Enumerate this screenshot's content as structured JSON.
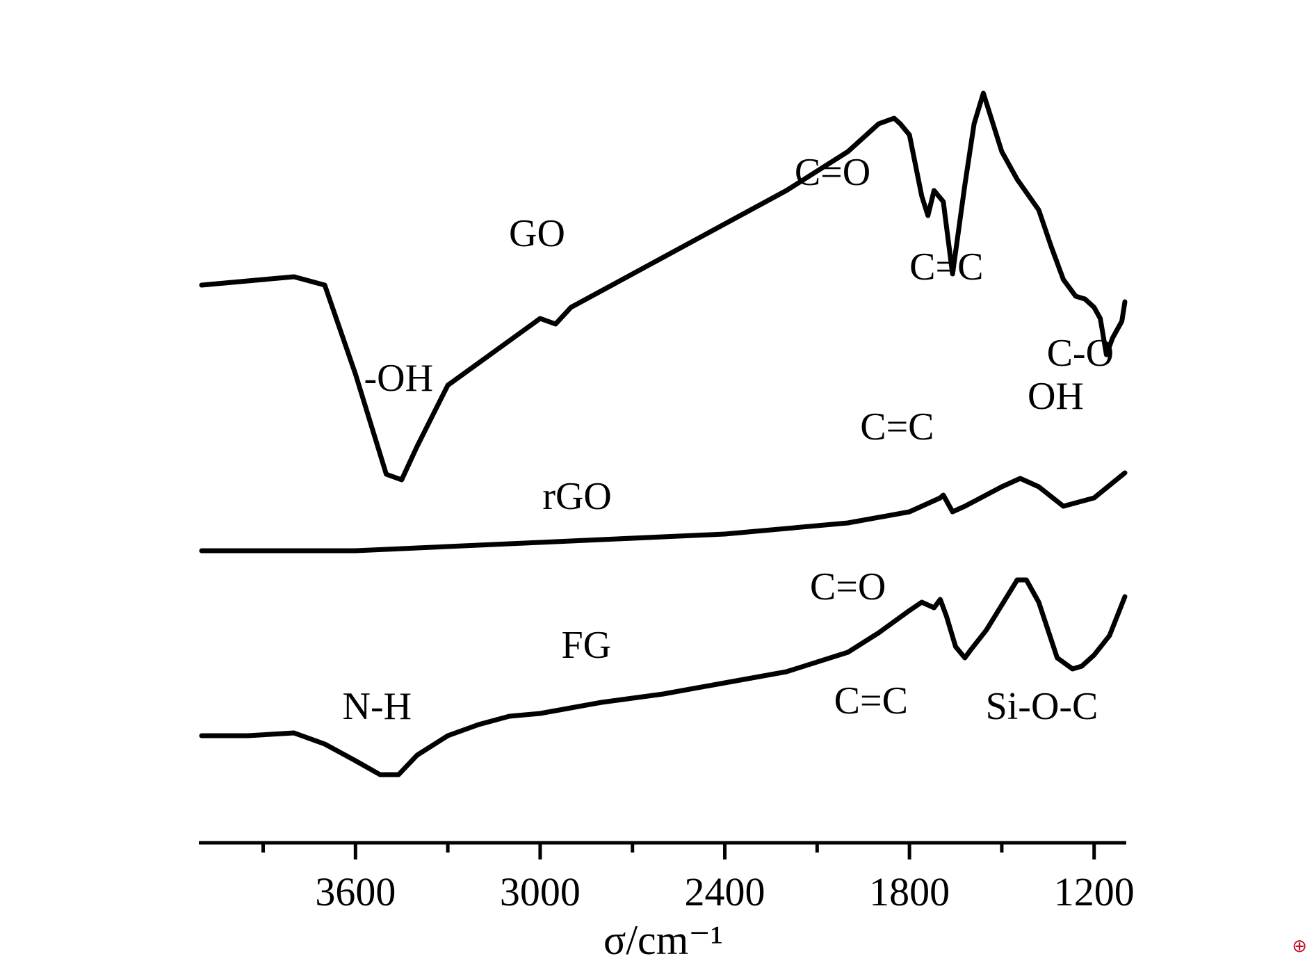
{
  "chart_data": {
    "type": "line",
    "xlabel": "σ/cm⁻¹",
    "xlim": [
      4100,
      1100
    ],
    "xticks": [
      3600,
      3000,
      2400,
      1800,
      1200
    ],
    "y_axis_visible": false,
    "grid": false,
    "series": [
      {
        "name": "GO",
        "offset": 2.0,
        "x": [
          4100,
          3900,
          3800,
          3700,
          3600,
          3500,
          3450,
          3400,
          3300,
          3200,
          3000,
          2950,
          2900,
          2800,
          2600,
          2400,
          2200,
          2000,
          1900,
          1850,
          1830,
          1800,
          1760,
          1740,
          1720,
          1690,
          1660,
          1620,
          1590,
          1560,
          1500,
          1450,
          1380,
          1340,
          1300,
          1260,
          1230,
          1200,
          1180,
          1160,
          1140,
          1110,
          1100
        ],
        "y": [
          0.7,
          0.72,
          0.73,
          0.7,
          0.38,
          0.02,
          0.0,
          0.12,
          0.34,
          0.42,
          0.58,
          0.56,
          0.62,
          0.68,
          0.8,
          0.92,
          1.04,
          1.18,
          1.28,
          1.3,
          1.28,
          1.24,
          1.02,
          0.95,
          1.04,
          1.0,
          0.74,
          1.06,
          1.28,
          1.39,
          1.18,
          1.08,
          0.97,
          0.84,
          0.72,
          0.66,
          0.65,
          0.62,
          0.58,
          0.45,
          0.51,
          0.57,
          0.64
        ]
      },
      {
        "name": "rGO",
        "offset": 1.0,
        "x": [
          4100,
          3600,
          3000,
          2400,
          2000,
          1800,
          1700,
          1690,
          1660,
          1620,
          1500,
          1440,
          1380,
          1300,
          1200,
          1100
        ],
        "y": [
          0.0,
          0.0,
          0.03,
          0.06,
          0.1,
          0.14,
          0.19,
          0.2,
          0.14,
          0.16,
          0.23,
          0.26,
          0.23,
          0.16,
          0.19,
          0.28
        ]
      },
      {
        "name": "FG",
        "offset": 0.0,
        "x": [
          4100,
          3950,
          3800,
          3700,
          3600,
          3520,
          3460,
          3400,
          3300,
          3200,
          3100,
          3000,
          2900,
          2800,
          2600,
          2400,
          2200,
          2000,
          1900,
          1800,
          1760,
          1720,
          1700,
          1680,
          1650,
          1620,
          1600,
          1550,
          1450,
          1420,
          1380,
          1320,
          1270,
          1240,
          1200,
          1150,
          1100
        ],
        "y": [
          0.1,
          0.1,
          0.11,
          0.07,
          0.01,
          -0.04,
          -0.04,
          0.03,
          0.1,
          0.14,
          0.17,
          0.18,
          0.2,
          0.22,
          0.25,
          0.29,
          0.33,
          0.4,
          0.47,
          0.55,
          0.58,
          0.56,
          0.59,
          0.53,
          0.42,
          0.38,
          0.41,
          0.48,
          0.66,
          0.66,
          0.58,
          0.38,
          0.34,
          0.35,
          0.39,
          0.46,
          0.6
        ]
      }
    ],
    "annotations": [
      {
        "text": "GO",
        "series": "GO",
        "x": 3010,
        "y": 0.84
      },
      {
        "text": "-OH",
        "series": "GO",
        "x": 3460,
        "y": 0.32
      },
      {
        "text": "C=O",
        "series": "GO",
        "x": 2050,
        "y": 1.06
      },
      {
        "text": "C=C",
        "series": "GO",
        "x": 1680,
        "y": 0.72
      },
      {
        "text": "C-O",
        "series": "GO",
        "x": 1245,
        "y": 0.41
      },
      {
        "text": "rGO",
        "series": "rGO",
        "x": 2880,
        "y": 0.15
      },
      {
        "text": "C=C",
        "series": "rGO",
        "x": 1840,
        "y": 0.4
      },
      {
        "text": "OH",
        "series": "rGO",
        "x": 1325,
        "y": 0.51
      },
      {
        "text": "C=O",
        "series": "FG",
        "x": 2000,
        "y": 0.59
      },
      {
        "text": "C=C",
        "series": "FG",
        "x": 1925,
        "y": 0.18
      },
      {
        "text": "Si-O-C",
        "series": "FG",
        "x": 1370,
        "y": 0.16
      },
      {
        "text": "FG",
        "series": "FG",
        "x": 2850,
        "y": 0.38
      },
      {
        "text": "N-H",
        "series": "FG",
        "x": 3530,
        "y": 0.16
      }
    ]
  }
}
